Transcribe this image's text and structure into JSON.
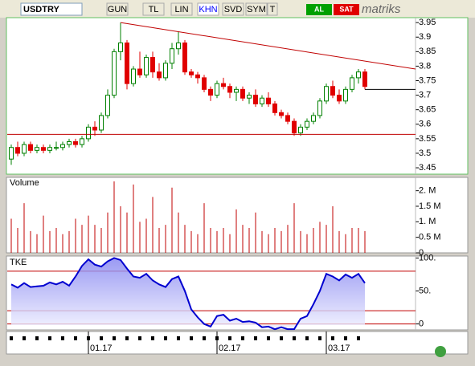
{
  "toolbar": {
    "symbol": "USDTRY",
    "buttons": [
      "GUN",
      "TL",
      "LIN",
      "KHN",
      "SVD",
      "SYM",
      "T"
    ],
    "buy": "AL",
    "sell": "SAT",
    "brand": "matriks"
  },
  "chart_data": [
    {
      "type": "candlestick",
      "up_color": "#008000",
      "down_color": "#e00000",
      "categories": [
        null,
        null,
        null,
        null,
        null,
        null,
        null,
        null,
        null,
        null,
        null,
        null,
        "01.17",
        null,
        null,
        null,
        null,
        null,
        null,
        null,
        null,
        null,
        null,
        null,
        null,
        null,
        null,
        null,
        null,
        null,
        null,
        null,
        "02.17",
        null,
        null,
        null,
        null,
        null,
        null,
        null,
        null,
        null,
        null,
        null,
        null,
        null,
        null,
        null,
        null,
        "03.17",
        null,
        null,
        null,
        null,
        null,
        null
      ],
      "open": [
        3.48,
        3.52,
        3.5,
        3.53,
        3.51,
        3.52,
        3.51,
        3.52,
        3.52,
        3.53,
        3.54,
        3.53,
        3.55,
        3.59,
        3.58,
        3.63,
        3.7,
        3.85,
        3.88,
        3.74,
        3.79,
        3.77,
        3.83,
        3.78,
        3.76,
        3.81,
        3.86,
        3.88,
        3.78,
        3.77,
        3.76,
        3.72,
        3.7,
        3.74,
        3.73,
        3.71,
        3.72,
        3.69,
        3.7,
        3.67,
        3.69,
        3.67,
        3.64,
        3.63,
        3.61,
        3.57,
        3.59,
        3.61,
        3.63,
        3.68,
        3.73,
        3.7,
        3.68,
        3.72,
        3.76,
        3.78
      ],
      "high": [
        3.53,
        3.54,
        3.54,
        3.54,
        3.53,
        3.53,
        3.53,
        3.54,
        3.54,
        3.55,
        3.55,
        3.56,
        3.6,
        3.61,
        3.64,
        3.72,
        3.86,
        3.95,
        3.89,
        3.8,
        3.85,
        3.84,
        3.85,
        3.81,
        3.82,
        3.88,
        3.92,
        3.89,
        3.79,
        3.78,
        3.77,
        3.73,
        3.75,
        3.76,
        3.74,
        3.73,
        3.73,
        3.71,
        3.72,
        3.7,
        3.71,
        3.68,
        3.65,
        3.64,
        3.62,
        3.6,
        3.62,
        3.64,
        3.69,
        3.74,
        3.75,
        3.72,
        3.73,
        3.77,
        3.79,
        3.79
      ],
      "low": [
        3.46,
        3.49,
        3.49,
        3.5,
        3.5,
        3.5,
        3.5,
        3.51,
        3.51,
        3.52,
        3.52,
        3.52,
        3.54,
        3.56,
        3.57,
        3.62,
        3.69,
        3.82,
        3.72,
        3.73,
        3.76,
        3.76,
        3.76,
        3.75,
        3.75,
        3.79,
        3.84,
        3.77,
        3.76,
        3.74,
        3.71,
        3.68,
        3.69,
        3.72,
        3.69,
        3.68,
        3.68,
        3.67,
        3.66,
        3.66,
        3.66,
        3.63,
        3.62,
        3.6,
        3.56,
        3.56,
        3.58,
        3.6,
        3.62,
        3.67,
        3.69,
        3.67,
        3.67,
        3.71,
        3.74,
        3.72
      ],
      "close": [
        3.52,
        3.5,
        3.53,
        3.51,
        3.52,
        3.51,
        3.52,
        3.52,
        3.53,
        3.54,
        3.53,
        3.55,
        3.59,
        3.58,
        3.63,
        3.7,
        3.85,
        3.88,
        3.74,
        3.79,
        3.77,
        3.83,
        3.78,
        3.76,
        3.81,
        3.86,
        3.88,
        3.78,
        3.77,
        3.76,
        3.72,
        3.7,
        3.74,
        3.73,
        3.71,
        3.72,
        3.69,
        3.7,
        3.67,
        3.69,
        3.67,
        3.64,
        3.63,
        3.61,
        3.57,
        3.59,
        3.61,
        3.63,
        3.68,
        3.73,
        3.7,
        3.68,
        3.72,
        3.76,
        3.78,
        3.73
      ],
      "ylim": [
        3.428,
        3.967
      ],
      "yticks": [
        3.45,
        3.5,
        3.55,
        3.6,
        3.65,
        3.7,
        3.75,
        3.8,
        3.85,
        3.9,
        3.95
      ],
      "lines": [
        {
          "color": "#c00000",
          "x": [
            17,
            63
          ],
          "y": [
            3.95,
            3.79
          ]
        },
        {
          "color": "#c00000",
          "x": [
            -1,
            63
          ],
          "y": [
            3.565,
            3.565
          ]
        },
        {
          "color": "#000000",
          "x": [
            55,
            63
          ],
          "y": [
            3.72,
            3.72
          ]
        }
      ]
    },
    {
      "type": "bar",
      "title": "Volume",
      "color": "#c00000",
      "values": [
        1.1,
        0.8,
        1.6,
        0.7,
        0.6,
        1.2,
        0.7,
        0.8,
        0.6,
        0.7,
        1.1,
        0.9,
        1.2,
        0.9,
        0.8,
        1.3,
        2.3,
        1.5,
        1.3,
        2.2,
        1.0,
        1.1,
        1.8,
        0.8,
        0.9,
        2.1,
        1.3,
        0.9,
        0.7,
        0.6,
        1.6,
        0.8,
        0.7,
        0.8,
        0.6,
        1.4,
        0.9,
        0.8,
        1.3,
        0.7,
        0.6,
        0.8,
        0.7,
        0.9,
        1.6,
        0.7,
        0.6,
        0.8,
        1.0,
        0.9,
        1.5,
        0.7,
        0.6,
        0.8,
        0.8,
        0.7
      ],
      "ylim": [
        0,
        2.43
      ],
      "yticks": [
        0,
        {
          "value": 0.5,
          "label": "0.5 M"
        },
        {
          "value": 1,
          "label": "1. M"
        },
        {
          "value": 1.5,
          "label": "1.5 M"
        },
        {
          "value": 2,
          "label": "2. M"
        }
      ]
    },
    {
      "type": "line",
      "title": "TKE",
      "color": "#0000d0",
      "values": [
        60,
        55,
        62,
        56,
        57,
        58,
        63,
        60,
        64,
        58,
        72,
        88,
        98,
        90,
        87,
        95,
        100,
        97,
        84,
        72,
        70,
        76,
        66,
        60,
        56,
        68,
        72,
        50,
        22,
        10,
        0,
        -4,
        12,
        14,
        5,
        8,
        3,
        4,
        2,
        -5,
        -4,
        -8,
        -5,
        -8,
        -8,
        8,
        12,
        30,
        50,
        76,
        72,
        66,
        75,
        70,
        76,
        62
      ],
      "ylim": [
        -9,
        103
      ],
      "yticks": [
        0,
        {
          "value": 50,
          "label": "50."
        },
        {
          "value": 100,
          "label": "100."
        }
      ],
      "levels": [
        80,
        20,
        0
      ],
      "level_color": "#c00000"
    }
  ]
}
